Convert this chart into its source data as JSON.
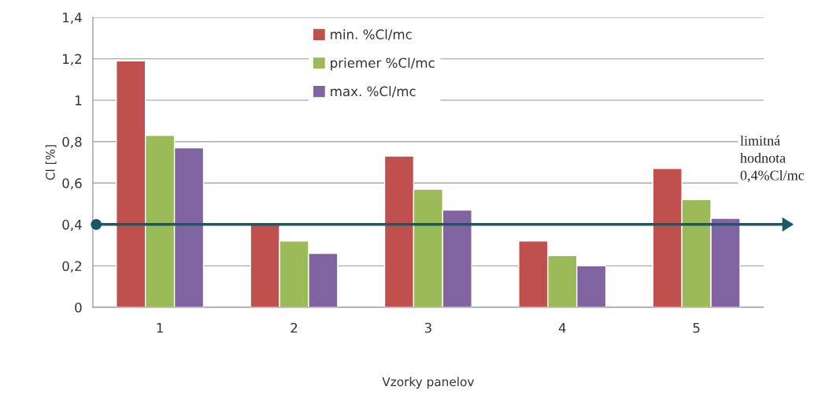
{
  "chart_data": {
    "type": "bar",
    "xlabel": "Vzorky panelov",
    "ylabel": "Cl [%]",
    "categories": [
      "1",
      "2",
      "3",
      "4",
      "5"
    ],
    "series": [
      {
        "name": "min. %Cl/mc",
        "color": "#c0504d",
        "values": [
          1.19,
          0.4,
          0.73,
          0.32,
          0.67
        ]
      },
      {
        "name": "priemer %Cl/mc",
        "color": "#9bbb59",
        "values": [
          0.83,
          0.32,
          0.57,
          0.25,
          0.52
        ]
      },
      {
        "name": "max. %Cl/mc",
        "color": "#8064a2",
        "values": [
          0.77,
          0.26,
          0.47,
          0.2,
          0.43
        ]
      }
    ],
    "ylim": [
      0,
      1.4
    ],
    "yticks": [
      {
        "value": 0,
        "label": "0"
      },
      {
        "value": 0.2,
        "label": "0,2"
      },
      {
        "value": 0.4,
        "label": "0,4"
      },
      {
        "value": 0.6,
        "label": "0,6"
      },
      {
        "value": 0.8,
        "label": "0,8"
      },
      {
        "value": 1,
        "label": "1"
      },
      {
        "value": 1.2,
        "label": "1,2"
      },
      {
        "value": 1.4,
        "label": "1,4"
      }
    ],
    "ref_lines": [
      {
        "axis": "y",
        "value": 0.4,
        "label": "limitná\nhodnota\n0,4%Cl/mc",
        "color": "#1d5868"
      }
    ],
    "grid": "y",
    "legend": "top"
  }
}
